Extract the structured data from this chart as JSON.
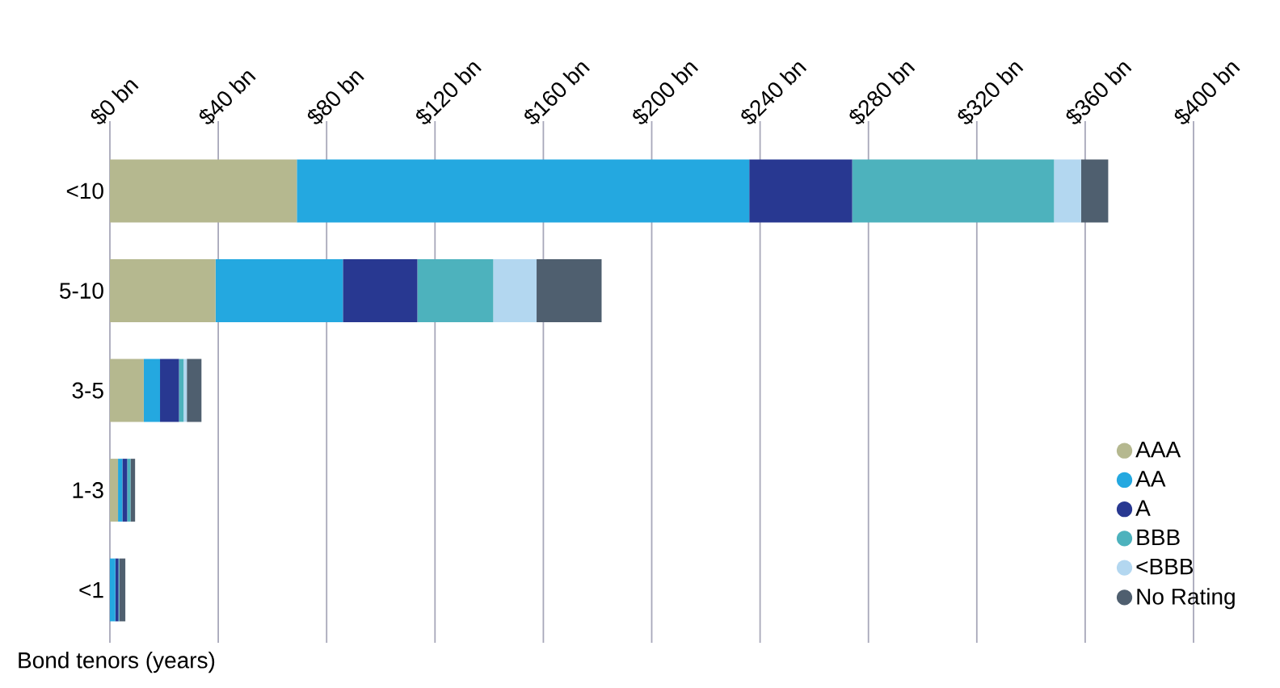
{
  "chart_data": {
    "type": "bar",
    "orientation": "horizontal",
    "stacked": true,
    "ylabel": "Bond tenors (years)",
    "categories": [
      "<10",
      "5-10",
      "3-5",
      "1-3",
      "<1"
    ],
    "series": [
      {
        "name": "AAA",
        "color": "#b5b88f",
        "values": [
          69,
          39,
          12.5,
          3,
          null
        ]
      },
      {
        "name": "AA",
        "color": "#24a8e0",
        "values": [
          167,
          47,
          6,
          1.6,
          2
        ]
      },
      {
        "name": "A",
        "color": "#283891",
        "values": [
          38,
          27.5,
          7,
          1.8,
          1.2
        ]
      },
      {
        "name": "BBB",
        "color": "#4db2bd",
        "values": [
          74.5,
          28,
          1.7,
          1.2,
          0.3
        ]
      },
      {
        "name": "<BBB",
        "color": "#b3d7f0",
        "values": [
          10,
          16,
          1.2,
          null,
          0
        ]
      },
      {
        "name": "No Rating",
        "color": "#4f5f6f",
        "values": [
          10,
          24,
          5.4,
          1.7,
          2.2
        ]
      }
    ],
    "xlim": [
      0,
      400
    ],
    "xticks": [
      {
        "value": 0,
        "label": "$0 bn"
      },
      {
        "value": 40,
        "label": "$40 bn"
      },
      {
        "value": 80,
        "label": "$80 bn"
      },
      {
        "value": 120,
        "label": "$120 bn"
      },
      {
        "value": 160,
        "label": "$160 bn"
      },
      {
        "value": 200,
        "label": "$200 bn"
      },
      {
        "value": 240,
        "label": "$240 bn"
      },
      {
        "value": 280,
        "label": "$280 bn"
      },
      {
        "value": 320,
        "label": "$320 bn"
      },
      {
        "value": 360,
        "label": "$360 bn"
      },
      {
        "value": 400,
        "label": "$400 bn"
      }
    ],
    "grid": "x",
    "legend": "bottom right"
  }
}
